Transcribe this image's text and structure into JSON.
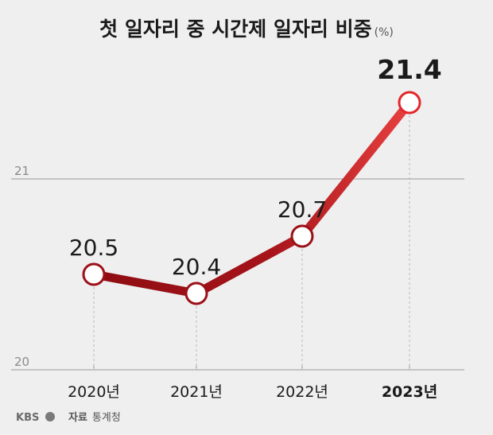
{
  "chart_data": {
    "type": "line",
    "title": "첫 일자리 중 시간제 일자리 비중",
    "unit": "(%)",
    "categories": [
      "2020년",
      "2021년",
      "2022년",
      "2023년"
    ],
    "values": [
      20.5,
      20.4,
      20.7,
      21.4
    ],
    "value_labels": [
      "20.5",
      "20.4",
      "20.7",
      "21.4"
    ],
    "ylim": [
      20,
      21.8
    ],
    "yticks": [
      20,
      21
    ],
    "ytick_labels": [
      "20",
      "21"
    ],
    "highlight_index": 3,
    "grid": "horizontal at y ticks; dotted verticals under points",
    "colors": {
      "background": "#efefef",
      "line_dark": "#8e0d12",
      "line_light": "#e03a3a",
      "marker_fill": "#ffffff",
      "marker_stroke_dark": "#9b1117",
      "marker_stroke_highlight": "#e3262b",
      "grid": "#9a9a9a"
    }
  },
  "source": {
    "logo": "KBS",
    "label": "자료",
    "org": "통계청"
  }
}
